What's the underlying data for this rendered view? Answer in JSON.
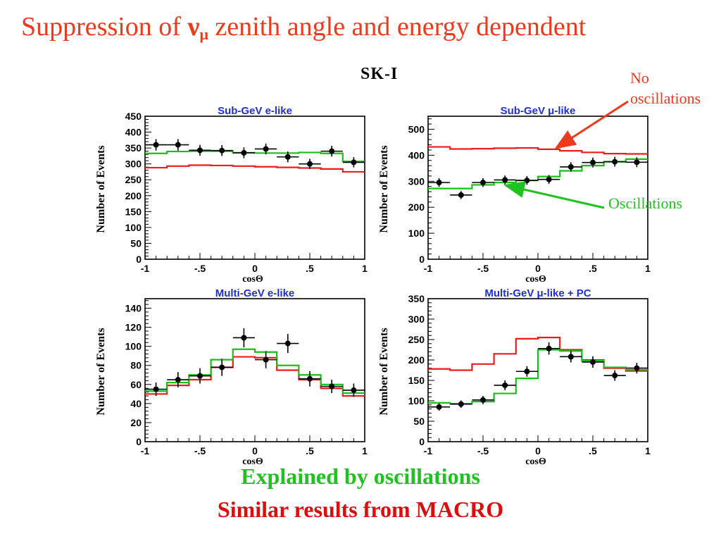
{
  "title": {
    "prefix": "Suppression of ",
    "nu": "ν",
    "mu": "μ",
    "suffix": " zenith angle and energy dependent"
  },
  "header": {
    "experiment": "SK-I"
  },
  "annotations": {
    "no_osc_line1": "No",
    "no_osc_line2": "oscillations",
    "osc": "Oscillations"
  },
  "footer": {
    "line1": "Explained by oscillations",
    "line2": "Similar results from MACRO"
  },
  "colors": {
    "title": "#ee3a1c",
    "no_oscillation": "#ee1c1c",
    "oscillation": "#18c018",
    "panel_title": "#1f2fd6",
    "footer_green": "#1fc21f",
    "footer_red": "#dd0d0d"
  },
  "chart_data": [
    {
      "type": "line",
      "title": "Sub-GeV e-like",
      "xlabel": "cosΘ",
      "ylabel": "Number of Events",
      "xlim": [
        -1,
        1
      ],
      "ylim": [
        0,
        450
      ],
      "yticks": [
        0,
        50,
        100,
        150,
        200,
        250,
        300,
        350,
        400,
        450
      ],
      "xticks": [
        -1,
        -0.5,
        0,
        0.5,
        1
      ],
      "x": [
        -0.9,
        -0.7,
        -0.5,
        -0.3,
        -0.1,
        0.1,
        0.3,
        0.5,
        0.7,
        0.9
      ],
      "data": {
        "y": [
          360,
          360,
          343,
          342,
          335,
          347,
          322,
          300,
          340,
          305
        ],
        "yerr": [
          18,
          18,
          17,
          17,
          17,
          17,
          17,
          16,
          17,
          16
        ]
      },
      "series": [
        {
          "values": [
            288,
            293,
            296,
            295,
            293,
            291,
            289,
            287,
            284,
            275
          ]
        },
        {
          "values": [
            333,
            339,
            340,
            340,
            335,
            334,
            334,
            336,
            333,
            308
          ]
        }
      ]
    },
    {
      "type": "line",
      "title": "Sub-GeV μ-like",
      "xlabel": "cosΘ",
      "ylabel": "Number of Events",
      "xlim": [
        -1,
        1
      ],
      "ylim": [
        0,
        550
      ],
      "yticks": [
        0,
        100,
        200,
        300,
        400,
        500
      ],
      "xticks": [
        -1,
        -0.5,
        0,
        0.5,
        1
      ],
      "x": [
        -0.9,
        -0.7,
        -0.5,
        -0.3,
        -0.1,
        0.1,
        0.3,
        0.5,
        0.7,
        0.9
      ],
      "data": {
        "y": [
          295,
          247,
          295,
          305,
          303,
          307,
          355,
          372,
          375,
          373
        ],
        "yerr": [
          17,
          15,
          17,
          17,
          17,
          17,
          18,
          19,
          19,
          19
        ]
      },
      "series": [
        {
          "values": [
            432,
            424,
            425,
            427,
            428,
            423,
            417,
            411,
            406,
            405
          ]
        },
        {
          "values": [
            272,
            272,
            286,
            295,
            303,
            318,
            340,
            360,
            375,
            385
          ]
        }
      ]
    },
    {
      "type": "line",
      "title": "Multi-GeV e-like",
      "xlabel": "cosΘ",
      "ylabel": "Number of Events",
      "xlim": [
        -1,
        1
      ],
      "ylim": [
        0,
        150
      ],
      "yticks": [
        0,
        20,
        40,
        60,
        80,
        100,
        120,
        140
      ],
      "xticks": [
        -1,
        -0.5,
        0,
        0.5,
        1
      ],
      "x": [
        -0.9,
        -0.7,
        -0.5,
        -0.3,
        -0.1,
        0.1,
        0.3,
        0.5,
        0.7,
        0.9
      ],
      "data": {
        "y": [
          55,
          65,
          69,
          78,
          109,
          86,
          103,
          66,
          58,
          54
        ],
        "yerr": [
          7,
          8,
          8,
          9,
          10,
          9,
          10,
          8,
          7,
          7
        ]
      },
      "series": [
        {
          "values": [
            50,
            59,
            65,
            78,
            89,
            88,
            75,
            65,
            56,
            48
          ]
        },
        {
          "values": [
            53,
            62,
            70,
            86,
            97,
            94,
            80,
            70,
            60,
            51
          ]
        }
      ]
    },
    {
      "type": "line",
      "title": "Multi-GeV μ-like + PC",
      "xlabel": "cosΘ",
      "ylabel": "Number of Events",
      "xlim": [
        -1,
        1
      ],
      "ylim": [
        0,
        350
      ],
      "yticks": [
        0,
        50,
        100,
        150,
        200,
        250,
        300,
        350
      ],
      "xticks": [
        -1,
        -0.5,
        0,
        0.5,
        1
      ],
      "x": [
        -0.9,
        -0.7,
        -0.5,
        -0.3,
        -0.1,
        0.1,
        0.3,
        0.5,
        0.7,
        0.9
      ],
      "data": {
        "y": [
          85,
          92,
          102,
          138,
          172,
          228,
          208,
          195,
          162,
          180
        ],
        "yerr": [
          9,
          9,
          10,
          12,
          13,
          15,
          14,
          14,
          13,
          13
        ]
      },
      "series": [
        {
          "values": [
            178,
            175,
            190,
            215,
            252,
            255,
            225,
            200,
            180,
            173
          ]
        },
        {
          "values": [
            95,
            93,
            98,
            118,
            155,
            225,
            222,
            198,
            182,
            176
          ]
        }
      ]
    }
  ]
}
